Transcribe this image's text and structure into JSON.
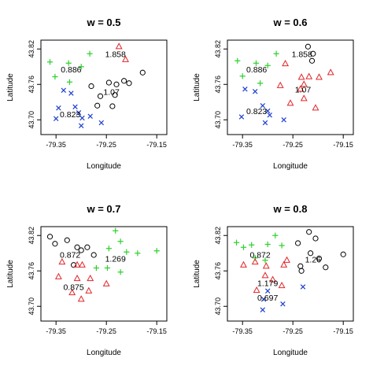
{
  "figure": {
    "colors": {
      "black": "#000000",
      "green": "#2fd12f",
      "blue": "#1f3fcf",
      "red": "#e0252a"
    }
  },
  "chart_data": [
    {
      "type": "scatter",
      "title": "w = 0.5",
      "xlabel": "Longitude",
      "ylabel": "Latitude",
      "xlim": [
        -79.38,
        -79.13
      ],
      "ylim": [
        43.675,
        43.835
      ],
      "xticks": [
        "-79.35",
        "-79.25",
        "-79.15"
      ],
      "yticks": [
        "43.70",
        "43.76",
        "43.82"
      ],
      "grid": false,
      "series": [
        {
          "color": "#2fd12f",
          "marker": "plus",
          "x": [
            -79.362,
            -79.325,
            -79.3,
            -79.283,
            -79.352,
            -79.323
          ],
          "y": [
            43.798,
            43.796,
            43.79,
            43.812,
            43.773,
            43.764
          ]
        },
        {
          "color": "#e0252a",
          "marker": "triangle",
          "x": [
            -79.225,
            -79.212
          ],
          "y": [
            43.824,
            43.802
          ]
        },
        {
          "color": "#000000",
          "marker": "circle",
          "x": [
            -79.178,
            -79.215,
            -79.23,
            -79.245,
            -79.205,
            -79.28,
            -79.268,
            -79.233,
            -79.238,
            -79.262
          ],
          "y": [
            43.78,
            43.766,
            43.76,
            43.763,
            43.762,
            43.757,
            43.724,
            43.742,
            43.723,
            43.74
          ]
        },
        {
          "color": "#1f3fcf",
          "marker": "x",
          "x": [
            -79.335,
            -79.32,
            -79.345,
            -79.312,
            -79.305,
            -79.298,
            -79.282,
            -79.35,
            -79.3,
            -79.26
          ],
          "y": [
            43.75,
            43.745,
            43.72,
            43.722,
            43.712,
            43.703,
            43.706,
            43.702,
            43.69,
            43.695
          ]
        }
      ],
      "annotations": [
        {
          "text": "1.858",
          "x": -79.232,
          "y": 43.812
        },
        {
          "text": "0.886",
          "x": -79.32,
          "y": 43.786
        },
        {
          "text": "1.07",
          "x": -79.24,
          "y": 43.748
        },
        {
          "text": "0.823",
          "x": -79.322,
          "y": 43.71
        }
      ]
    },
    {
      "type": "scatter",
      "title": "w = 0.6",
      "xlabel": "Longitude",
      "ylabel": "Latitude",
      "xlim": [
        -79.38,
        -79.13
      ],
      "ylim": [
        43.675,
        43.835
      ],
      "xticks": [
        "-79.35",
        "-79.25",
        "-79.15"
      ],
      "yticks": [
        "43.70",
        "43.76",
        "43.82"
      ],
      "grid": false,
      "series": [
        {
          "color": "#2fd12f",
          "marker": "plus",
          "x": [
            -79.36,
            -79.323,
            -79.3,
            -79.283,
            -79.35,
            -79.315
          ],
          "y": [
            43.8,
            43.796,
            43.792,
            43.812,
            43.774,
            43.762
          ]
        },
        {
          "color": "#000000",
          "marker": "circle",
          "x": [
            -79.22,
            -79.21,
            -79.212
          ],
          "y": [
            43.824,
            43.812,
            43.8
          ]
        },
        {
          "color": "#e0252a",
          "marker": "triangle",
          "x": [
            -79.265,
            -79.233,
            -79.218,
            -79.198,
            -79.175,
            -79.228,
            -79.235,
            -79.275,
            -79.255,
            -79.228,
            -79.205
          ],
          "y": [
            43.795,
            43.772,
            43.773,
            43.772,
            43.78,
            43.76,
            43.752,
            43.758,
            43.728,
            43.736,
            43.72
          ]
        },
        {
          "color": "#1f3fcf",
          "marker": "x",
          "x": [
            -79.345,
            -79.325,
            -79.31,
            -79.3,
            -79.296,
            -79.352,
            -79.268,
            -79.305
          ],
          "y": [
            43.752,
            43.748,
            43.724,
            43.715,
            43.708,
            43.705,
            43.7,
            43.695
          ]
        }
      ],
      "annotations": [
        {
          "text": "1.858",
          "x": -79.232,
          "y": 43.812
        },
        {
          "text": "0.886",
          "x": -79.322,
          "y": 43.786
        },
        {
          "text": "1.07",
          "x": -79.23,
          "y": 43.752
        },
        {
          "text": "0.823",
          "x": -79.322,
          "y": 43.715
        }
      ]
    },
    {
      "type": "scatter",
      "title": "w = 0.7",
      "xlabel": "Longitude",
      "ylabel": "Latitude",
      "xlim": [
        -79.38,
        -79.13
      ],
      "ylim": [
        43.675,
        43.835
      ],
      "xticks": [
        "-79.35",
        "-79.25",
        "-79.15"
      ],
      "yticks": [
        "43.70",
        "43.76",
        "43.82"
      ],
      "grid": false,
      "series": [
        {
          "color": "#000000",
          "marker": "circle",
          "x": [
            -79.362,
            -79.328,
            -79.308,
            -79.288,
            -79.352,
            -79.3,
            -79.275,
            -79.315
          ],
          "y": [
            43.818,
            43.812,
            43.8,
            43.8,
            43.806,
            43.795,
            43.787,
            43.77
          ]
        },
        {
          "color": "#2fd12f",
          "marker": "plus",
          "x": [
            -79.232,
            -79.222,
            -79.245,
            -79.21,
            -79.188,
            -79.15,
            -79.27,
            -79.248,
            -79.222
          ],
          "y": [
            43.828,
            43.81,
            43.798,
            43.792,
            43.79,
            43.794,
            43.765,
            43.765,
            43.758
          ]
        },
        {
          "color": "#e0252a",
          "marker": "triangle",
          "x": [
            -79.338,
            -79.308,
            -79.298,
            -79.345,
            -79.308,
            -79.282,
            -79.318,
            -79.285,
            -79.3,
            -79.25
          ],
          "y": [
            43.775,
            43.77,
            43.77,
            43.75,
            43.747,
            43.747,
            43.723,
            43.726,
            43.712,
            43.738
          ]
        }
      ],
      "annotations": [
        {
          "text": "0.872",
          "x": -79.322,
          "y": 43.788
        },
        {
          "text": "1.269",
          "x": -79.232,
          "y": 43.781
        },
        {
          "text": "0.875",
          "x": -79.315,
          "y": 43.733
        }
      ]
    },
    {
      "type": "scatter",
      "title": "w = 0.8",
      "xlabel": "Longitude",
      "ylabel": "Latitude",
      "xlim": [
        -79.38,
        -79.13
      ],
      "ylim": [
        43.675,
        43.835
      ],
      "xticks": [
        "-79.35",
        "-79.25",
        "-79.15"
      ],
      "yticks": [
        "43.70",
        "43.76",
        "43.82"
      ],
      "grid": false,
      "series": [
        {
          "color": "#2fd12f",
          "marker": "plus",
          "x": [
            -79.285,
            -79.362,
            -79.348,
            -79.332,
            -79.3,
            -79.272,
            -79.325,
            -79.305
          ],
          "y": [
            43.82,
            43.808,
            43.8,
            43.804,
            43.805,
            43.803,
            43.782,
            43.778
          ]
        },
        {
          "color": "#000000",
          "marker": "circle",
          "x": [
            -79.218,
            -79.205,
            -79.24,
            -79.215,
            -79.198,
            -79.15,
            -79.235,
            -79.233,
            -79.185
          ],
          "y": [
            43.826,
            43.815,
            43.807,
            43.79,
            43.781,
            43.788,
            43.768,
            43.76,
            43.766
          ]
        },
        {
          "color": "#e0252a",
          "marker": "triangle",
          "x": [
            -79.325,
            -79.303,
            -79.348,
            -79.268,
            -79.262,
            -79.305,
            -79.29,
            -79.272,
            -79.322
          ],
          "y": [
            43.775,
            43.768,
            43.77,
            43.77,
            43.778,
            43.752,
            43.745,
            43.735,
            43.727
          ]
        },
        {
          "color": "#1f3fcf",
          "marker": "x",
          "x": [
            -79.3,
            -79.308,
            -79.23,
            -79.31,
            -79.27
          ],
          "y": [
            43.726,
            43.712,
            43.733,
            43.694,
            43.704
          ]
        }
      ],
      "annotations": [
        {
          "text": "0.872",
          "x": -79.315,
          "y": 43.788
        },
        {
          "text": "1.26",
          "x": -79.21,
          "y": 43.78
        },
        {
          "text": "1.179",
          "x": -79.3,
          "y": 43.74
        },
        {
          "text": "0.697",
          "x": -79.3,
          "y": 43.715
        }
      ]
    }
  ]
}
